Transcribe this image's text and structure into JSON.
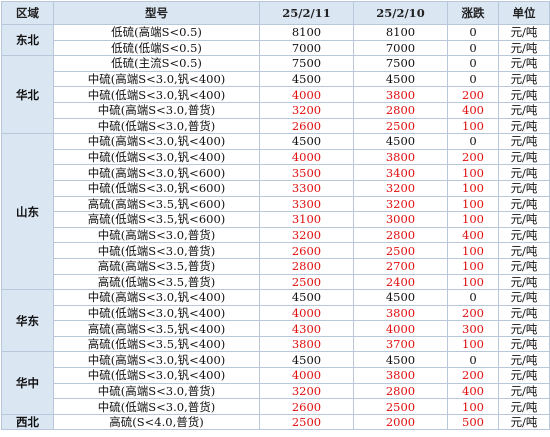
{
  "table": {
    "header": [
      "区域",
      "型号",
      "25/2/11",
      "25/2/10",
      "涨跌",
      "单位"
    ],
    "regions": [
      {
        "name": "东北",
        "rows": [
          [
            "低硫(高端S<0.5)",
            8100,
            8100,
            0,
            "元/吨"
          ],
          [
            "低硫(低端S<0.5)",
            7000,
            7000,
            0,
            "元/吨"
          ]
        ]
      },
      {
        "name": "华北",
        "rows": [
          [
            "低硫(主流S<0.5)",
            7500,
            7500,
            0,
            "元/吨"
          ],
          [
            "中硫(高端S<3.0,钒<400)",
            4500,
            4500,
            0,
            "元/吨"
          ],
          [
            "中硫(低端S<3.0,钒<400)",
            4000,
            3800,
            200,
            "元/吨"
          ],
          [
            "中硫(高端S<3.0,普货)",
            3200,
            2800,
            400,
            "元/吨"
          ],
          [
            "中硫(低端S<3.0,普货)",
            2600,
            2500,
            100,
            "元/吨"
          ]
        ]
      },
      {
        "name": "山东",
        "rows": [
          [
            "中硫(高端S<3.0,钒<400)",
            4500,
            4500,
            0,
            "元/吨"
          ],
          [
            "中硫(低端S<3.0,钒<400)",
            4000,
            3800,
            200,
            "元/吨"
          ],
          [
            "中硫(高端S<3.0,钒<600)",
            3500,
            3400,
            100,
            "元/吨"
          ],
          [
            "中硫(低端S<3.0,钒<600)",
            3300,
            3200,
            100,
            "元/吨"
          ],
          [
            "高硫(高端S<3.5,钒<600)",
            3300,
            3200,
            100,
            "元/吨"
          ],
          [
            "高硫(低端S<3.5,钒<600)",
            3100,
            3000,
            100,
            "元/吨"
          ],
          [
            "中硫(高端S<3.0,普货)",
            3200,
            2800,
            400,
            "元/吨"
          ],
          [
            "中硫(低端S<3.0,普货)",
            2600,
            2500,
            100,
            "元/吨"
          ],
          [
            "高硫(高端S<3.5,普货)",
            2800,
            2700,
            100,
            "元/吨"
          ],
          [
            "高硫(低端S<3.5,普货)",
            2500,
            2400,
            100,
            "元/吨"
          ]
        ]
      },
      {
        "name": "华东",
        "rows": [
          [
            "中硫(高端S<3.0,钒<400)",
            4500,
            4500,
            0,
            "元/吨"
          ],
          [
            "中硫(低端S<3.0,钒<400)",
            4000,
            3800,
            200,
            "元/吨"
          ],
          [
            "高硫(高端S<3.5,钒<400)",
            4300,
            4000,
            300,
            "元/吨"
          ],
          [
            "高硫(低端S<3.5,钒<400)",
            3800,
            3700,
            100,
            "元/吨"
          ]
        ]
      },
      {
        "name": "华中",
        "rows": [
          [
            "中硫(高端S<3.0,钒<400)",
            4500,
            4500,
            0,
            "元/吨"
          ],
          [
            "中硫(低端S<3.0,钒<400)",
            4000,
            3800,
            200,
            "元/吨"
          ],
          [
            "中硫(高端S<3.0,普货)",
            3200,
            2800,
            400,
            "元/吨"
          ],
          [
            "中硫(低端S<3.0,普货)",
            2600,
            2500,
            100,
            "元/吨"
          ]
        ]
      },
      {
        "name": "西北",
        "rows": [
          [
            "高硫(S<4.0,普货)",
            2500,
            2000,
            500,
            "元/吨"
          ]
        ]
      }
    ]
  }
}
